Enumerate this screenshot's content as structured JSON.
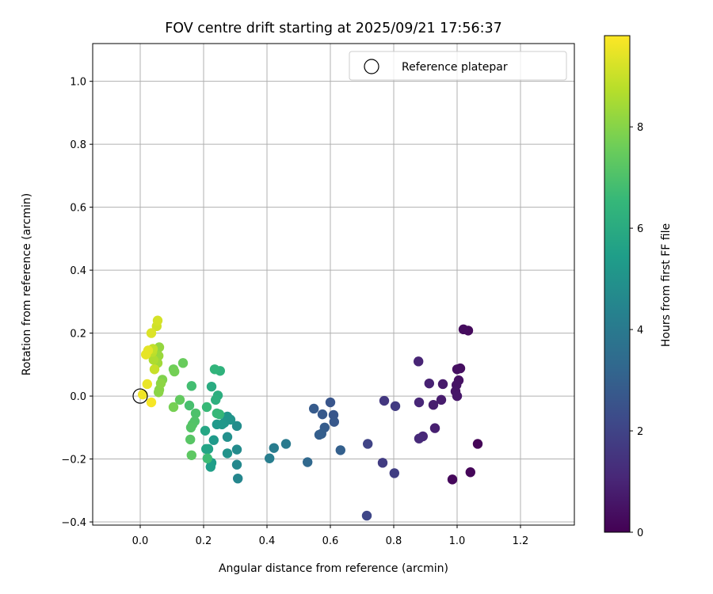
{
  "chart_data": {
    "type": "scatter",
    "title": "FOV centre drift starting at 2025/09/21 17:56:37",
    "xlabel": "Angular distance from reference (arcmin)",
    "ylabel": "Rotation from reference (arcmin)",
    "xlim": [
      -0.15,
      1.37
    ],
    "ylim": [
      -0.41,
      1.12
    ],
    "xticks": [
      0.0,
      0.2,
      0.4,
      0.6,
      0.8,
      1.0,
      1.2
    ],
    "xtick_labels": [
      "0.0",
      "0.2",
      "0.4",
      "0.6",
      "0.8",
      "1.0",
      "1.2"
    ],
    "yticks": [
      -0.4,
      -0.2,
      0.0,
      0.2,
      0.4,
      0.6,
      0.8,
      1.0
    ],
    "ytick_labels": [
      "−0.4",
      "−0.2",
      "0.0",
      "0.2",
      "0.4",
      "0.6",
      "0.8",
      "1.0"
    ],
    "grid": true,
    "legend": {
      "position": "top-right",
      "entries": [
        "Reference platepar"
      ]
    },
    "reference_point": {
      "x": 0.0,
      "y": 0.0,
      "label": "Reference platepar"
    },
    "colorbar": {
      "label": "Hours from first FF file",
      "colormap": "viridis",
      "range": [
        0,
        9.8
      ],
      "ticks": [
        0,
        2,
        4,
        6,
        8
      ],
      "tick_labels": [
        "0",
        "2",
        "4",
        "6",
        "8"
      ]
    },
    "colormap_stops": [
      "#440154",
      "#482878",
      "#3e4989",
      "#31688e",
      "#26828e",
      "#1f9e89",
      "#35b779",
      "#6ece58",
      "#b5de2b",
      "#fde725"
    ],
    "points": [
      {
        "x": 1.065,
        "y": -0.152,
        "h": 0.1
      },
      {
        "x": 1.042,
        "y": -0.242,
        "h": 0.15
      },
      {
        "x": 0.985,
        "y": -0.265,
        "h": 0.2
      },
      {
        "x": 1.035,
        "y": 0.208,
        "h": 0.25
      },
      {
        "x": 1.02,
        "y": 0.212,
        "h": 0.3
      },
      {
        "x": 1.01,
        "y": 0.088,
        "h": 0.35
      },
      {
        "x": 1.0,
        "y": 0.085,
        "h": 0.4
      },
      {
        "x": 1.005,
        "y": 0.05,
        "h": 0.45
      },
      {
        "x": 0.998,
        "y": 0.035,
        "h": 0.5
      },
      {
        "x": 0.995,
        "y": 0.015,
        "h": 0.55
      },
      {
        "x": 1.0,
        "y": 0.0,
        "h": 0.6
      },
      {
        "x": 0.955,
        "y": 0.038,
        "h": 0.7
      },
      {
        "x": 0.95,
        "y": -0.012,
        "h": 0.75
      },
      {
        "x": 0.925,
        "y": -0.028,
        "h": 0.8
      },
      {
        "x": 0.93,
        "y": -0.102,
        "h": 0.85
      },
      {
        "x": 0.912,
        "y": 0.04,
        "h": 0.9
      },
      {
        "x": 0.878,
        "y": 0.11,
        "h": 1.0
      },
      {
        "x": 0.88,
        "y": -0.02,
        "h": 1.05
      },
      {
        "x": 0.892,
        "y": -0.128,
        "h": 1.1
      },
      {
        "x": 0.88,
        "y": -0.135,
        "h": 1.15
      },
      {
        "x": 0.77,
        "y": -0.015,
        "h": 1.6
      },
      {
        "x": 0.805,
        "y": -0.032,
        "h": 1.7
      },
      {
        "x": 0.765,
        "y": -0.212,
        "h": 1.75
      },
      {
        "x": 0.802,
        "y": -0.245,
        "h": 1.8
      },
      {
        "x": 0.718,
        "y": -0.152,
        "h": 2.0
      },
      {
        "x": 0.715,
        "y": -0.38,
        "h": 2.1
      },
      {
        "x": 0.6,
        "y": -0.02,
        "h": 2.6
      },
      {
        "x": 0.61,
        "y": -0.06,
        "h": 2.65
      },
      {
        "x": 0.612,
        "y": -0.082,
        "h": 2.7
      },
      {
        "x": 0.575,
        "y": -0.058,
        "h": 2.75
      },
      {
        "x": 0.548,
        "y": -0.04,
        "h": 2.8
      },
      {
        "x": 0.582,
        "y": -0.1,
        "h": 2.85
      },
      {
        "x": 0.572,
        "y": -0.12,
        "h": 2.9
      },
      {
        "x": 0.565,
        "y": -0.123,
        "h": 2.95
      },
      {
        "x": 0.632,
        "y": -0.172,
        "h": 3.0
      },
      {
        "x": 0.528,
        "y": -0.21,
        "h": 3.3
      },
      {
        "x": 0.46,
        "y": -0.152,
        "h": 4.0
      },
      {
        "x": 0.422,
        "y": -0.165,
        "h": 4.1
      },
      {
        "x": 0.408,
        "y": -0.198,
        "h": 4.2
      },
      {
        "x": 0.308,
        "y": -0.262,
        "h": 4.5
      },
      {
        "x": 0.305,
        "y": -0.218,
        "h": 4.6
      },
      {
        "x": 0.305,
        "y": -0.17,
        "h": 4.7
      },
      {
        "x": 0.305,
        "y": -0.095,
        "h": 4.8
      },
      {
        "x": 0.275,
        "y": -0.13,
        "h": 4.9
      },
      {
        "x": 0.275,
        "y": -0.182,
        "h": 5.0
      },
      {
        "x": 0.285,
        "y": -0.075,
        "h": 5.05
      },
      {
        "x": 0.275,
        "y": -0.065,
        "h": 5.1
      },
      {
        "x": 0.265,
        "y": -0.085,
        "h": 5.15
      },
      {
        "x": 0.258,
        "y": -0.09,
        "h": 5.2
      },
      {
        "x": 0.242,
        "y": -0.09,
        "h": 5.25
      },
      {
        "x": 0.232,
        "y": -0.14,
        "h": 5.3
      },
      {
        "x": 0.225,
        "y": -0.212,
        "h": 5.4
      },
      {
        "x": 0.222,
        "y": -0.225,
        "h": 5.5
      },
      {
        "x": 0.215,
        "y": -0.168,
        "h": 5.6
      },
      {
        "x": 0.208,
        "y": -0.168,
        "h": 5.7
      },
      {
        "x": 0.205,
        "y": -0.11,
        "h": 5.8
      },
      {
        "x": 0.225,
        "y": 0.03,
        "h": 6.0
      },
      {
        "x": 0.245,
        "y": 0.002,
        "h": 6.1
      },
      {
        "x": 0.238,
        "y": -0.012,
        "h": 6.2
      },
      {
        "x": 0.252,
        "y": 0.08,
        "h": 6.3
      },
      {
        "x": 0.235,
        "y": 0.085,
        "h": 6.4
      },
      {
        "x": 0.25,
        "y": -0.058,
        "h": 6.5
      },
      {
        "x": 0.242,
        "y": -0.055,
        "h": 6.55
      },
      {
        "x": 0.21,
        "y": -0.035,
        "h": 6.6
      },
      {
        "x": 0.212,
        "y": -0.198,
        "h": 6.7
      },
      {
        "x": 0.162,
        "y": 0.032,
        "h": 6.8
      },
      {
        "x": 0.155,
        "y": -0.03,
        "h": 6.9
      },
      {
        "x": 0.175,
        "y": -0.055,
        "h": 7.0
      },
      {
        "x": 0.172,
        "y": -0.08,
        "h": 7.05
      },
      {
        "x": 0.165,
        "y": -0.09,
        "h": 7.1
      },
      {
        "x": 0.16,
        "y": -0.1,
        "h": 7.15
      },
      {
        "x": 0.158,
        "y": -0.138,
        "h": 7.2
      },
      {
        "x": 0.162,
        "y": -0.188,
        "h": 7.3
      },
      {
        "x": 0.125,
        "y": -0.012,
        "h": 7.4
      },
      {
        "x": 0.135,
        "y": 0.105,
        "h": 7.5
      },
      {
        "x": 0.105,
        "y": 0.085,
        "h": 7.6
      },
      {
        "x": 0.108,
        "y": 0.078,
        "h": 7.7
      },
      {
        "x": 0.105,
        "y": -0.035,
        "h": 7.75
      },
      {
        "x": 0.07,
        "y": 0.052,
        "h": 7.9
      },
      {
        "x": 0.06,
        "y": 0.02,
        "h": 8.0
      },
      {
        "x": 0.058,
        "y": 0.012,
        "h": 8.05
      },
      {
        "x": 0.065,
        "y": 0.04,
        "h": 8.1
      },
      {
        "x": 0.06,
        "y": 0.155,
        "h": 8.2
      },
      {
        "x": 0.058,
        "y": 0.128,
        "h": 8.3
      },
      {
        "x": 0.055,
        "y": 0.105,
        "h": 8.4
      },
      {
        "x": 0.042,
        "y": 0.115,
        "h": 8.6
      },
      {
        "x": 0.038,
        "y": 0.14,
        "h": 8.8
      },
      {
        "x": 0.04,
        "y": 0.15,
        "h": 8.9
      },
      {
        "x": 0.045,
        "y": 0.085,
        "h": 9.0
      },
      {
        "x": 0.052,
        "y": 0.222,
        "h": 9.1
      },
      {
        "x": 0.055,
        "y": 0.24,
        "h": 9.2
      },
      {
        "x": 0.035,
        "y": 0.2,
        "h": 9.3
      },
      {
        "x": 0.025,
        "y": 0.145,
        "h": 9.4
      },
      {
        "x": 0.018,
        "y": 0.132,
        "h": 9.45
      },
      {
        "x": 0.022,
        "y": 0.038,
        "h": 9.5
      },
      {
        "x": 0.008,
        "y": 0.005,
        "h": 9.6
      },
      {
        "x": 0.035,
        "y": -0.02,
        "h": 9.7
      }
    ]
  }
}
